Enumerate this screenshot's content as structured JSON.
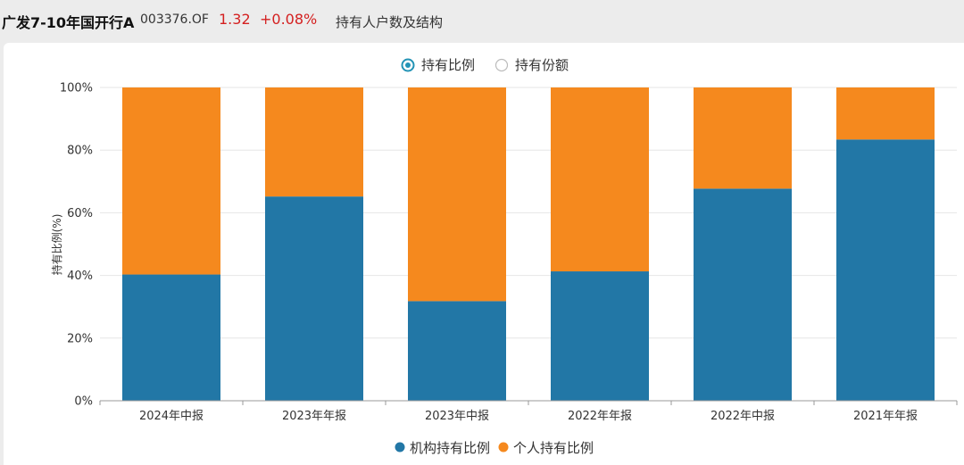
{
  "header": {
    "fund_name": "广发7-10年国开行A",
    "fund_code": "003376.OF",
    "nav": "1.32",
    "change": "+0.08%",
    "section_title": "持有人户数及结构"
  },
  "toggle": {
    "options": [
      {
        "label": "持有比例",
        "selected": true
      },
      {
        "label": "持有份额",
        "selected": false
      }
    ]
  },
  "colors": {
    "institution": "#2277a6",
    "individual": "#f5891e",
    "accent": "#2293b5"
  },
  "chart_data": {
    "type": "bar",
    "stacked": true,
    "categories": [
      "2024年中报",
      "2023年年报",
      "2023年中报",
      "2022年年报",
      "2022年中报",
      "2021年年报"
    ],
    "series": [
      {
        "name": "机构持有比例",
        "values": [
          40.3,
          65.2,
          31.8,
          41.3,
          67.7,
          83.4
        ]
      },
      {
        "name": "个人持有比例",
        "values": [
          59.7,
          34.8,
          68.2,
          58.7,
          32.3,
          16.6
        ]
      }
    ],
    "ylabel": "持有比例(%)",
    "ylim": [
      0,
      100
    ],
    "yticks": [
      "0%",
      "20%",
      "40%",
      "60%",
      "80%",
      "100%"
    ],
    "grid": true,
    "legend": "bottom-center"
  }
}
